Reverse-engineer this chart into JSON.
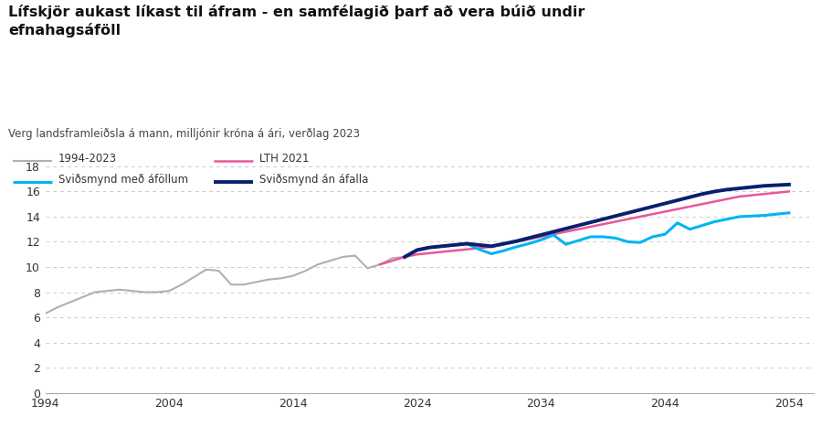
{
  "title": "Lífskjör aukast líkast til áfram - en samfélagið þarf að vera búið undir\nefnahagsáföll",
  "subtitle": "Verg landsframleiðsla á mann, milljónir króna á ári, verðlag 2023",
  "background_color": "#ffffff",
  "ylim": [
    0,
    19
  ],
  "yticks": [
    0,
    2,
    4,
    6,
    8,
    10,
    12,
    14,
    16,
    18
  ],
  "xlim": [
    1994,
    2056
  ],
  "xticks": [
    1994,
    2004,
    2014,
    2024,
    2034,
    2044,
    2054
  ],
  "series_historical": {
    "label": "1994-2023",
    "color": "#b0b0b0",
    "linewidth": 1.5,
    "x": [
      1994,
      1995,
      1996,
      1997,
      1998,
      1999,
      2000,
      2001,
      2002,
      2003,
      2004,
      2005,
      2006,
      2007,
      2008,
      2009,
      2010,
      2011,
      2012,
      2013,
      2014,
      2015,
      2016,
      2017,
      2018,
      2019,
      2020,
      2021,
      2022,
      2023
    ],
    "y": [
      6.3,
      6.8,
      7.2,
      7.6,
      8.0,
      8.1,
      8.2,
      8.1,
      8.0,
      8.0,
      8.1,
      8.6,
      9.2,
      9.8,
      9.7,
      8.6,
      8.6,
      8.8,
      9.0,
      9.1,
      9.3,
      9.7,
      10.2,
      10.5,
      10.8,
      10.9,
      9.9,
      10.2,
      10.7,
      10.8
    ]
  },
  "series_lth2021": {
    "label": "LTH 2021",
    "color": "#e8589a",
    "linewidth": 1.8,
    "x": [
      2021,
      2022,
      2023,
      2024,
      2025,
      2026,
      2027,
      2028,
      2029,
      2030,
      2031,
      2032,
      2033,
      2034,
      2035,
      2036,
      2037,
      2038,
      2039,
      2040,
      2041,
      2042,
      2043,
      2044,
      2045,
      2046,
      2047,
      2048,
      2049,
      2050,
      2051,
      2052,
      2053,
      2054
    ],
    "y": [
      10.2,
      10.5,
      10.8,
      11.0,
      11.1,
      11.2,
      11.3,
      11.4,
      11.5,
      11.6,
      11.8,
      12.0,
      12.2,
      12.4,
      12.6,
      12.8,
      13.0,
      13.2,
      13.4,
      13.6,
      13.8,
      14.0,
      14.2,
      14.4,
      14.6,
      14.8,
      15.0,
      15.2,
      15.4,
      15.6,
      15.7,
      15.8,
      15.9,
      16.0
    ]
  },
  "series_no_shock": {
    "label": "Sviðsmynd án áfalla",
    "color": "#0a1f6e",
    "linewidth": 2.8,
    "x": [
      2023,
      2024,
      2025,
      2026,
      2027,
      2028,
      2029,
      2030,
      2031,
      2032,
      2033,
      2034,
      2035,
      2036,
      2037,
      2038,
      2039,
      2040,
      2041,
      2042,
      2043,
      2044,
      2045,
      2046,
      2047,
      2048,
      2049,
      2050,
      2051,
      2052,
      2053,
      2054
    ],
    "y": [
      10.8,
      11.35,
      11.55,
      11.65,
      11.75,
      11.85,
      11.75,
      11.65,
      11.85,
      12.05,
      12.3,
      12.55,
      12.8,
      13.05,
      13.3,
      13.55,
      13.8,
      14.05,
      14.3,
      14.55,
      14.8,
      15.05,
      15.3,
      15.55,
      15.8,
      16.0,
      16.15,
      16.25,
      16.35,
      16.45,
      16.5,
      16.55
    ]
  },
  "series_with_shock": {
    "label": "Sviðsmynd með áföllum",
    "color": "#00b4f5",
    "linewidth": 2.2,
    "x": [
      2023,
      2024,
      2025,
      2026,
      2027,
      2028,
      2029,
      2030,
      2031,
      2032,
      2033,
      2034,
      2035,
      2036,
      2037,
      2038,
      2039,
      2040,
      2041,
      2042,
      2043,
      2044,
      2045,
      2046,
      2047,
      2048,
      2049,
      2050,
      2051,
      2052,
      2053,
      2054
    ],
    "y": [
      10.8,
      11.35,
      11.55,
      11.65,
      11.75,
      11.85,
      11.4,
      11.05,
      11.3,
      11.6,
      11.85,
      12.15,
      12.55,
      11.8,
      12.1,
      12.4,
      12.4,
      12.3,
      12.0,
      11.95,
      12.4,
      12.6,
      13.5,
      13.0,
      13.3,
      13.6,
      13.8,
      14.0,
      14.05,
      14.1,
      14.2,
      14.3
    ]
  },
  "legend_entries": [
    {
      "label": "1994-2023",
      "color": "#b0b0b0",
      "linewidth": 1.5
    },
    {
      "label": "LTH 2021",
      "color": "#e8589a",
      "linewidth": 1.8
    },
    {
      "label": "Sviðsmynd með áföllum",
      "color": "#00b4f5",
      "linewidth": 2.2
    },
    {
      "label": "Sviðsmynd án áfalla",
      "color": "#0a1f6e",
      "linewidth": 2.8
    }
  ]
}
